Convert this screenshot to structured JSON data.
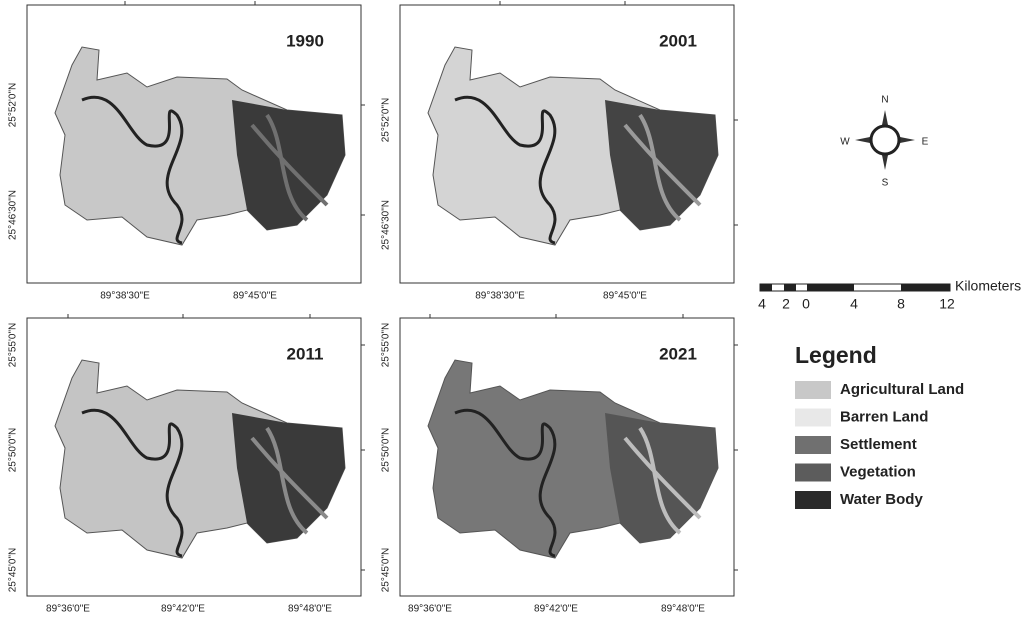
{
  "panels": [
    {
      "year": "1990",
      "lat_labels": [
        "25°52'0\"N",
        "25°46'30\"N"
      ],
      "lon_labels": [
        "89°38'30\"E",
        "89°45'0\"E"
      ]
    },
    {
      "year": "2001",
      "lat_labels": [
        "25°52'0\"N",
        "25°46'30\"N"
      ],
      "lon_labels": [
        "89°38'30\"E",
        "89°45'0\"E"
      ]
    },
    {
      "year": "2011",
      "lat_labels": [
        "25°55'0\"N",
        "25°50'0\"N",
        "25°45'0\"N"
      ],
      "lon_labels": [
        "89°36'0\"E",
        "89°42'0\"E",
        "89°48'0\"E"
      ]
    },
    {
      "year": "2021",
      "lat_labels": [
        "25°55'0\"N",
        "25°50'0\"N",
        "25°45'0\"N"
      ],
      "lon_labels": [
        "89°36'0\"E",
        "89°42'0\"E",
        "89°48'0\"E"
      ]
    }
  ],
  "compass": {
    "n": "N",
    "e": "E",
    "s": "S",
    "w": "W"
  },
  "scale_bar": {
    "labels": [
      4,
      2,
      0,
      4,
      8,
      12
    ],
    "unit": "Kilometers"
  },
  "legend": {
    "title": "Legend",
    "items": [
      {
        "label": "Agricultural Land",
        "color": "#c8c8c8"
      },
      {
        "label": "Barren Land",
        "color": "#e8e8e8"
      },
      {
        "label": "Settlement",
        "color": "#707070"
      },
      {
        "label": "Vegetation",
        "color": "#5c5c5c"
      },
      {
        "label": "Water Body",
        "color": "#2a2a2a"
      }
    ]
  }
}
